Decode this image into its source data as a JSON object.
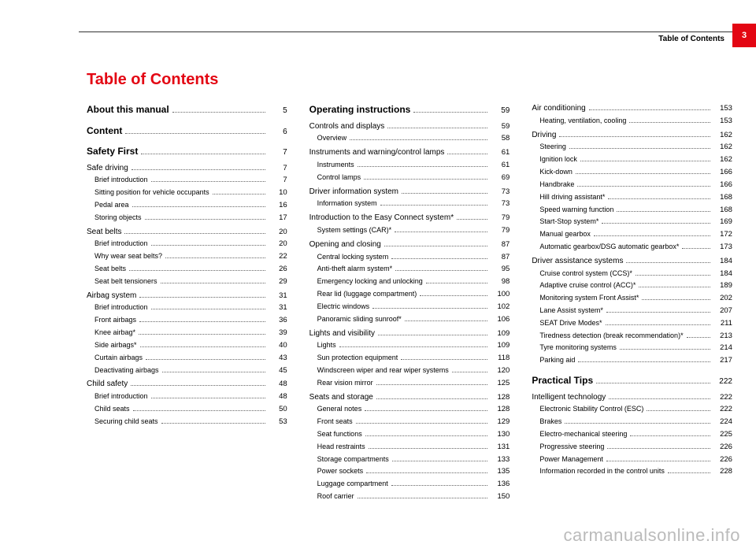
{
  "header": {
    "running": "Table of Contents",
    "page_badge": "3"
  },
  "title": "Table of Contents",
  "watermark": "carmanualsonline.info",
  "toc": [
    {
      "level": "section",
      "label": "About this manual",
      "page": "5",
      "first": true
    },
    {
      "level": "section",
      "label": "Content",
      "page": "6"
    },
    {
      "level": "section",
      "label": "Safety First",
      "page": "7"
    },
    {
      "level": "heading",
      "label": "Safe driving",
      "page": "7"
    },
    {
      "level": "sub",
      "label": "Brief introduction",
      "page": "7"
    },
    {
      "level": "sub",
      "label": "Sitting position for vehicle occupants",
      "page": "10"
    },
    {
      "level": "sub",
      "label": "Pedal area",
      "page": "16"
    },
    {
      "level": "sub",
      "label": "Storing objects",
      "page": "17"
    },
    {
      "level": "heading",
      "label": "Seat belts",
      "page": "20"
    },
    {
      "level": "sub",
      "label": "Brief introduction",
      "page": "20"
    },
    {
      "level": "sub",
      "label": "Why wear seat belts?",
      "page": "22"
    },
    {
      "level": "sub",
      "label": "Seat belts",
      "page": "26"
    },
    {
      "level": "sub",
      "label": "Seat belt tensioners",
      "page": "29"
    },
    {
      "level": "heading",
      "label": "Airbag system",
      "page": "31"
    },
    {
      "level": "sub",
      "label": "Brief introduction",
      "page": "31"
    },
    {
      "level": "sub",
      "label": "Front airbags",
      "page": "36"
    },
    {
      "level": "sub",
      "label": "Knee airbag*",
      "page": "39"
    },
    {
      "level": "sub",
      "label": "Side airbags*",
      "page": "40"
    },
    {
      "level": "sub",
      "label": "Curtain airbags",
      "page": "43"
    },
    {
      "level": "sub",
      "label": "Deactivating airbags",
      "page": "45"
    },
    {
      "level": "heading",
      "label": "Child safety",
      "page": "48"
    },
    {
      "level": "sub",
      "label": "Brief introduction",
      "page": "48"
    },
    {
      "level": "sub",
      "label": "Child seats",
      "page": "50"
    },
    {
      "level": "sub",
      "label": "Securing child seats",
      "page": "53"
    },
    {
      "level": "section",
      "label": "Operating instructions",
      "page": "59",
      "colstart": true
    },
    {
      "level": "heading",
      "label": "Controls and displays",
      "page": "59"
    },
    {
      "level": "sub",
      "label": "Overview",
      "page": "58"
    },
    {
      "level": "heading",
      "label": "Instruments and warning/control lamps",
      "page": "61"
    },
    {
      "level": "sub",
      "label": "Instruments",
      "page": "61"
    },
    {
      "level": "sub",
      "label": "Control lamps",
      "page": "69"
    },
    {
      "level": "heading",
      "label": "Driver information system",
      "page": "73"
    },
    {
      "level": "sub",
      "label": "Information system",
      "page": "73"
    },
    {
      "level": "heading",
      "label": "Introduction to the Easy Connect system*",
      "page": "79"
    },
    {
      "level": "sub",
      "label": "System settings (CAR)*",
      "page": "79"
    },
    {
      "level": "heading",
      "label": "Opening and closing",
      "page": "87"
    },
    {
      "level": "sub",
      "label": "Central locking system",
      "page": "87"
    },
    {
      "level": "sub",
      "label": "Anti-theft alarm system*",
      "page": "95"
    },
    {
      "level": "sub",
      "label": "Emergency locking and unlocking",
      "page": "98"
    },
    {
      "level": "sub",
      "label": "Rear lid (luggage compartment)",
      "page": "100"
    },
    {
      "level": "sub",
      "label": "Electric windows",
      "page": "102"
    },
    {
      "level": "sub",
      "label": "Panoramic sliding sunroof*",
      "page": "106"
    },
    {
      "level": "heading",
      "label": "Lights and visibility",
      "page": "109"
    },
    {
      "level": "sub",
      "label": "Lights",
      "page": "109"
    },
    {
      "level": "sub",
      "label": "Sun protection equipment",
      "page": "118"
    },
    {
      "level": "sub",
      "label": "Windscreen wiper and rear wiper systems",
      "page": "120"
    },
    {
      "level": "sub",
      "label": "Rear vision mirror",
      "page": "125"
    },
    {
      "level": "heading",
      "label": "Seats and storage",
      "page": "128"
    },
    {
      "level": "sub",
      "label": "General notes",
      "page": "128"
    },
    {
      "level": "sub",
      "label": "Front seats",
      "page": "129"
    },
    {
      "level": "sub",
      "label": "Seat functions",
      "page": "130"
    },
    {
      "level": "sub",
      "label": "Head restraints",
      "page": "131"
    },
    {
      "level": "sub",
      "label": "Storage compartments",
      "page": "133"
    },
    {
      "level": "sub",
      "label": "Power sockets",
      "page": "135"
    },
    {
      "level": "sub",
      "label": "Luggage compartment",
      "page": "136"
    },
    {
      "level": "sub",
      "label": "Roof carrier",
      "page": "150"
    },
    {
      "level": "heading",
      "label": "Air conditioning",
      "page": "153",
      "colstart": true
    },
    {
      "level": "sub",
      "label": "Heating, ventilation, cooling",
      "page": "153"
    },
    {
      "level": "heading",
      "label": "Driving",
      "page": "162"
    },
    {
      "level": "sub",
      "label": "Steering",
      "page": "162"
    },
    {
      "level": "sub",
      "label": "Ignition lock",
      "page": "162"
    },
    {
      "level": "sub",
      "label": "Kick-down",
      "page": "166"
    },
    {
      "level": "sub",
      "label": "Handbrake",
      "page": "166"
    },
    {
      "level": "sub",
      "label": "Hill driving assistant*",
      "page": "168"
    },
    {
      "level": "sub",
      "label": "Speed warning function",
      "page": "168"
    },
    {
      "level": "sub",
      "label": "Start-Stop system*",
      "page": "169"
    },
    {
      "level": "sub",
      "label": "Manual gearbox",
      "page": "172"
    },
    {
      "level": "sub",
      "label": "Automatic gearbox/DSG automatic gearbox*",
      "page": "173"
    },
    {
      "level": "heading",
      "label": "Driver assistance systems",
      "page": "184"
    },
    {
      "level": "sub",
      "label": "Cruise control system (CCS)*",
      "page": "184"
    },
    {
      "level": "sub",
      "label": "Adaptive cruise control (ACC)*",
      "page": "189"
    },
    {
      "level": "sub",
      "label": "Monitoring system Front Assist*",
      "page": "202"
    },
    {
      "level": "sub",
      "label": "Lane Assist system*",
      "page": "207"
    },
    {
      "level": "sub",
      "label": "SEAT Drive Modes*",
      "page": "211"
    },
    {
      "level": "sub",
      "label": "Tiredness detection (break recommendation)*",
      "page": "213"
    },
    {
      "level": "sub",
      "label": "Tyre monitoring systems",
      "page": "214"
    },
    {
      "level": "sub",
      "label": "Parking aid",
      "page": "217"
    },
    {
      "level": "section",
      "label": "Practical Tips",
      "page": "222"
    },
    {
      "level": "heading",
      "label": "Intelligent technology",
      "page": "222"
    },
    {
      "level": "sub",
      "label": "Electronic Stability Control (ESC)",
      "page": "222"
    },
    {
      "level": "sub",
      "label": "Brakes",
      "page": "224"
    },
    {
      "level": "sub",
      "label": "Electro-mechanical steering",
      "page": "225"
    },
    {
      "level": "sub",
      "label": "Progressive steering",
      "page": "226"
    },
    {
      "level": "sub",
      "label": "Power Management",
      "page": "226"
    },
    {
      "level": "sub",
      "label": "Information recorded in the control units",
      "page": "228"
    }
  ]
}
